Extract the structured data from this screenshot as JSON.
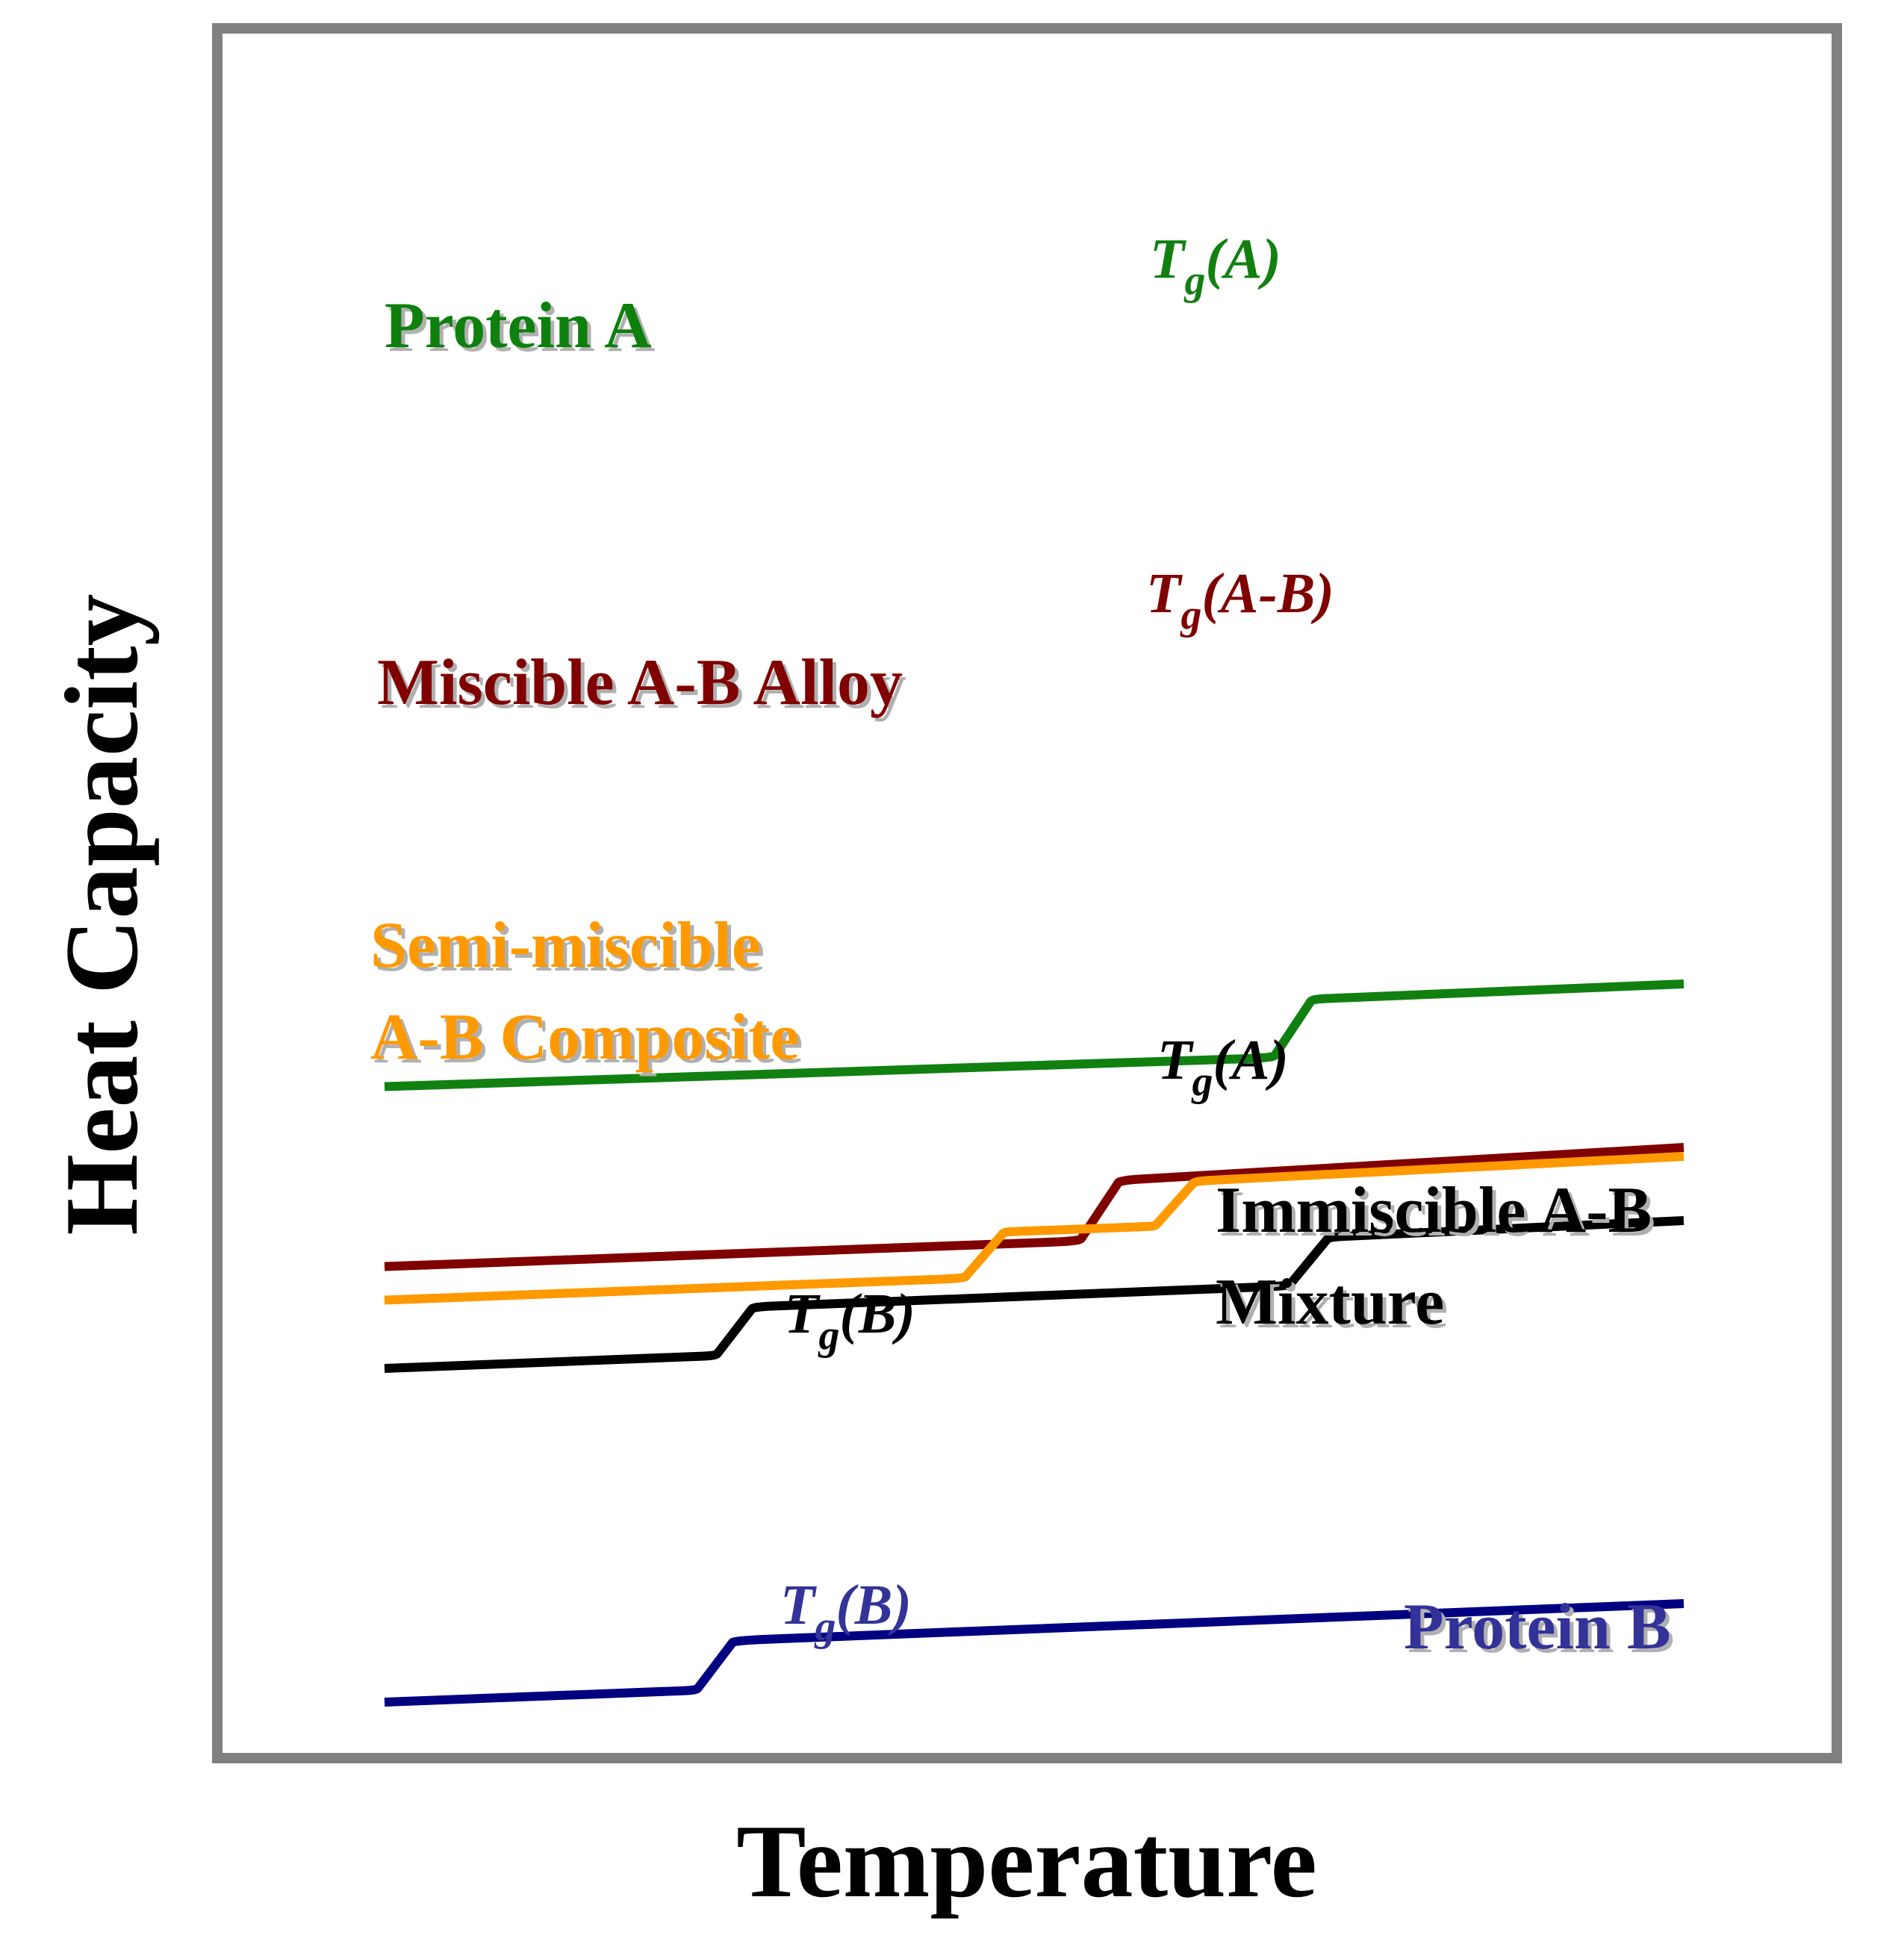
{
  "chart_data": {
    "type": "line",
    "xlabel": "Temperature",
    "ylabel": "Heat Capacity",
    "grid": false,
    "legend": "none",
    "x": [
      0,
      100
    ],
    "xlim": [
      0,
      100
    ],
    "ylim": [
      0,
      100
    ],
    "frame_color": "#808080",
    "series": [
      {
        "name": "Protein A",
        "color": "#118011",
        "points": [
          [
            0,
            75
          ],
          [
            68.4,
            82
          ],
          [
            71.4,
            96.3
          ],
          [
            100,
            100
          ]
        ],
        "transitions": [
          {
            "label_main": "T",
            "label_sub": "g",
            "label_rest": "(A)"
          }
        ]
      },
      {
        "name": "Miscible A-B Alloy",
        "color": "#800000",
        "points": [
          [
            0,
            53
          ],
          [
            53.5,
            59.2
          ],
          [
            56.6,
            74
          ],
          [
            100,
            82
          ]
        ],
        "transitions": [
          {
            "label_main": "T",
            "label_sub": "g",
            "label_rest": "(A-B)"
          }
        ]
      },
      {
        "name_lines": [
          "Semi-miscible",
          "A-B Composite"
        ],
        "color": "#FF9900",
        "points": [
          [
            0,
            37
          ],
          [
            44.6,
            42.3
          ],
          [
            47.7,
            53.6
          ],
          [
            59.3,
            55
          ],
          [
            62.4,
            66
          ],
          [
            100,
            72
          ]
        ],
        "transitions": []
      },
      {
        "name_lines": [
          "Immiscible A-B",
          "Mixture"
        ],
        "color": "#000000",
        "points": [
          [
            0,
            18
          ],
          [
            25.5,
            21.1
          ],
          [
            28.4,
            33
          ],
          [
            69.6,
            38.1
          ],
          [
            72.7,
            50
          ],
          [
            100,
            54
          ]
        ],
        "transitions": [
          {
            "label_main": "T",
            "label_sub": "g",
            "label_rest": "(A)"
          },
          {
            "label_main": "T",
            "label_sub": "g",
            "label_rest": "(B)"
          }
        ]
      },
      {
        "name": "Protein B",
        "color": "#000080",
        "points": [
          [
            0,
            0
          ],
          [
            24,
            2.9
          ],
          [
            26.9,
            15
          ],
          [
            100,
            24
          ]
        ],
        "transitions": [
          {
            "label_main": "T",
            "label_sub": "g",
            "label_rest": "(B)"
          }
        ]
      }
    ]
  }
}
